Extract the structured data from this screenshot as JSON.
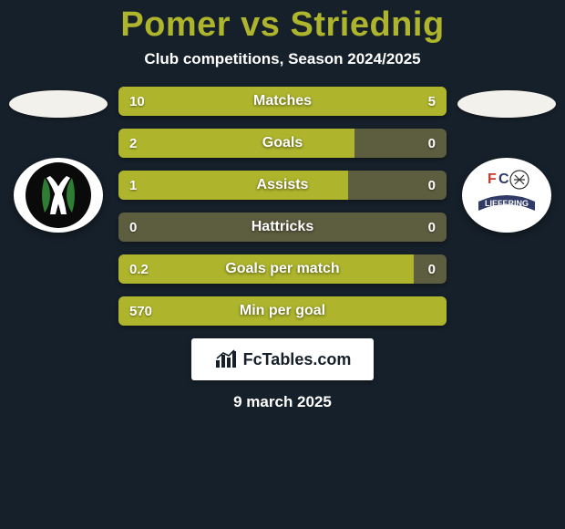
{
  "background_color": "#16202a",
  "title": {
    "text": "Pomer vs Striednig",
    "color": "#aeb52c",
    "fontsize": 38
  },
  "subtitle": "Club competitions, Season 2024/2025",
  "left_ellipse_color": "#f3f1ec",
  "right_ellipse_color": "#f3f1ec",
  "left_crest": {
    "bg": "#ffffff",
    "inner_bg": "#0a0a0a",
    "accent": "#2e7d32"
  },
  "right_crest": {
    "bg": "#ffffff",
    "red": "#c43a2e",
    "blue": "#2f3a66",
    "label": "LIEFERING",
    "label_color": "#ffffff"
  },
  "bar_track_color": "#5d5d40",
  "bar_left_color": "#aeb52c",
  "bar_right_color": "#aeb52c",
  "bars": [
    {
      "category": "Matches",
      "left_val": "10",
      "right_val": "5",
      "left_pct": 66.7,
      "right_pct": 33.3
    },
    {
      "category": "Goals",
      "left_val": "2",
      "right_val": "0",
      "left_pct": 72.0,
      "right_pct": 0.0
    },
    {
      "category": "Assists",
      "left_val": "1",
      "right_val": "0",
      "left_pct": 70.0,
      "right_pct": 0.0
    },
    {
      "category": "Hattricks",
      "left_val": "0",
      "right_val": "0",
      "left_pct": 0.0,
      "right_pct": 0.0
    },
    {
      "category": "Goals per match",
      "left_val": "0.2",
      "right_val": "0",
      "left_pct": 90.0,
      "right_pct": 0.0
    },
    {
      "category": "Min per goal",
      "left_val": "570",
      "right_val": "",
      "left_pct": 100.0,
      "right_pct": 0.0
    }
  ],
  "brand": "FcTables.com",
  "brand_icon_color": "#16202a",
  "date": "9 march 2025"
}
